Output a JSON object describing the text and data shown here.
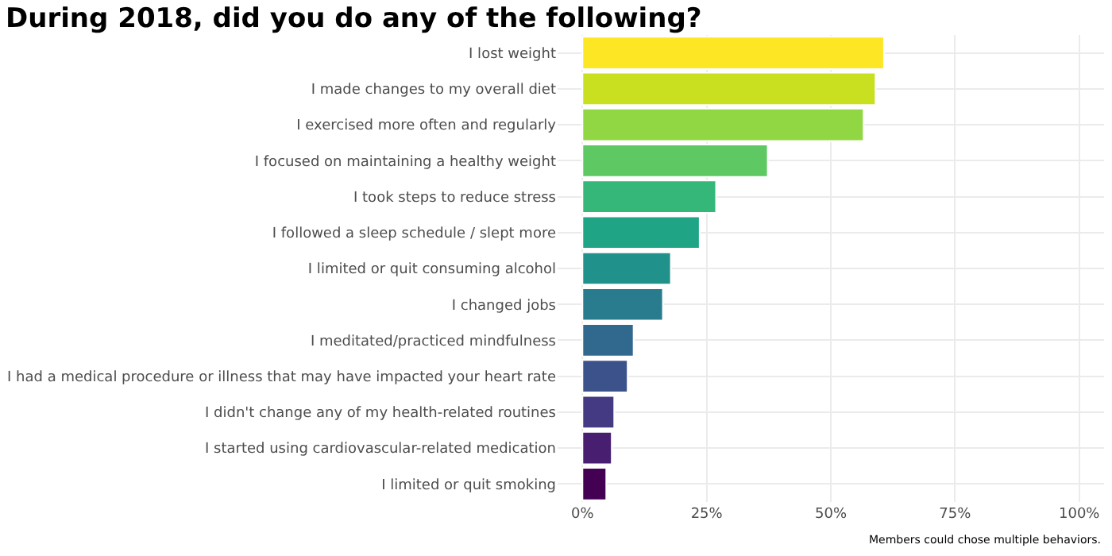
{
  "chart_data": {
    "type": "bar",
    "orientation": "horizontal",
    "title": "During 2018, did you do any of the following?",
    "categories": [
      "I lost weight",
      "I made changes to my overall diet",
      "I exercised more often and regularly",
      "I focused on maintaining a healthy weight",
      "I took steps to reduce stress",
      "I followed a sleep schedule / slept more",
      "I limited or quit consuming alcohol",
      "I changed jobs",
      "I meditated/practiced mindfulness",
      "I had a medical procedure or illness that may have impacted your heart rate",
      "I didn't change any of my health-related routines",
      "I started using cardiovascular-related medication",
      "I limited or quit smoking"
    ],
    "values": [
      60.7,
      59.0,
      56.6,
      37.3,
      26.9,
      23.6,
      17.8,
      16.2,
      10.3,
      9.1,
      6.4,
      5.9,
      4.8
    ],
    "colors": [
      "#fde725",
      "#c8e020",
      "#90d743",
      "#5ec962",
      "#35b779",
      "#20a486",
      "#21918c",
      "#287c8e",
      "#31688e",
      "#3b528b",
      "#443983",
      "#481f70",
      "#440154"
    ],
    "xlim": [
      -5,
      105
    ],
    "xticks": [
      {
        "value": 0,
        "label": "0%"
      },
      {
        "value": 25,
        "label": "25%"
      },
      {
        "value": 50,
        "label": "50%"
      },
      {
        "value": 75,
        "label": "75%"
      },
      {
        "value": 100,
        "label": "100%"
      }
    ],
    "grid": true,
    "annotations": [
      "Members could chose multiple behaviors."
    ]
  }
}
